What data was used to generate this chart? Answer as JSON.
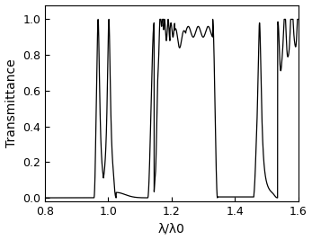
{
  "xlabel": "λ/λ0",
  "ylabel": "Transmittance",
  "xlim": [
    0.8,
    1.6
  ],
  "ylim": [
    -0.02,
    1.08
  ],
  "xticks": [
    0.8,
    1.0,
    1.2,
    1.4,
    1.6
  ],
  "yticks": [
    0,
    0.2,
    0.4,
    0.6,
    0.8,
    1.0
  ],
  "linecolor": "black",
  "linewidth": 0.9,
  "background": "white"
}
